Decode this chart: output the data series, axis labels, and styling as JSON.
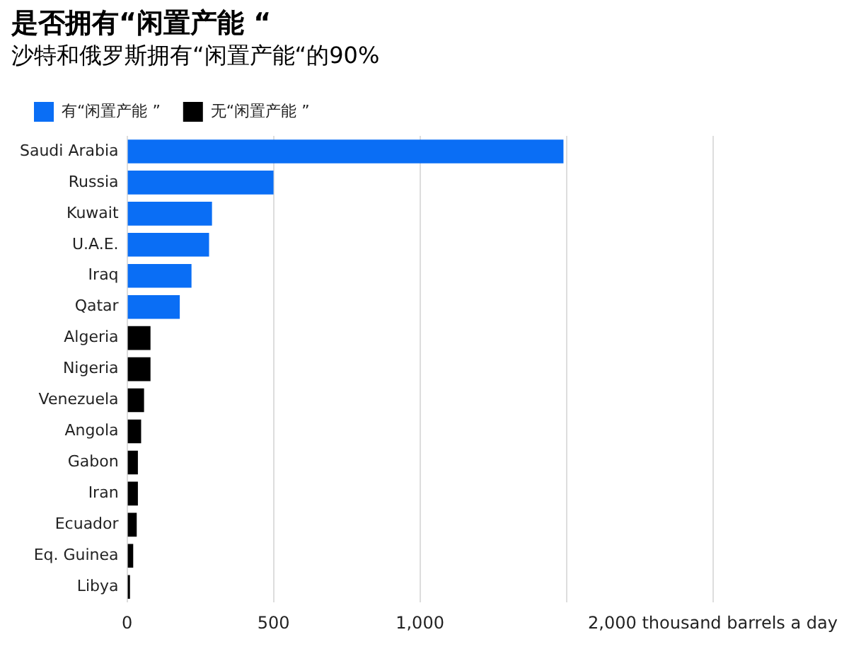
{
  "chart_data": {
    "type": "bar",
    "orientation": "horizontal",
    "title": "是否拥有“闲置产能 “",
    "subtitle": "沙特和俄罗斯拥有“闲置产能“的90%",
    "categories": [
      "Saudi Arabia",
      "Russia",
      "Kuwait",
      "U.A.E.",
      "Iraq",
      "Qatar",
      "Algeria",
      "Nigeria",
      "Venezuela",
      "Angola",
      "Gabon",
      "Iran",
      "Ecuador",
      "Eq. Guinea",
      "Libya"
    ],
    "series": [
      {
        "name": "有“闲置产能 ”",
        "color": "#0a6ef5",
        "values": [
          1490,
          500,
          290,
          280,
          220,
          180,
          null,
          null,
          null,
          null,
          null,
          null,
          null,
          null,
          null
        ]
      },
      {
        "name": "无“闲置产能 ”",
        "color": "#000000",
        "values": [
          null,
          null,
          null,
          null,
          null,
          null,
          80,
          80,
          58,
          48,
          37,
          37,
          33,
          21,
          10
        ]
      }
    ],
    "xlim": [
      0,
      2000
    ],
    "xticks": [
      0,
      500,
      {
        "value": 1000,
        "label": "1,000"
      },
      {
        "value": 1500,
        "label": null
      },
      {
        "value": 2000,
        "label": "2,000 thousand barrels a day"
      }
    ],
    "grid": "x",
    "legend": "top left"
  }
}
